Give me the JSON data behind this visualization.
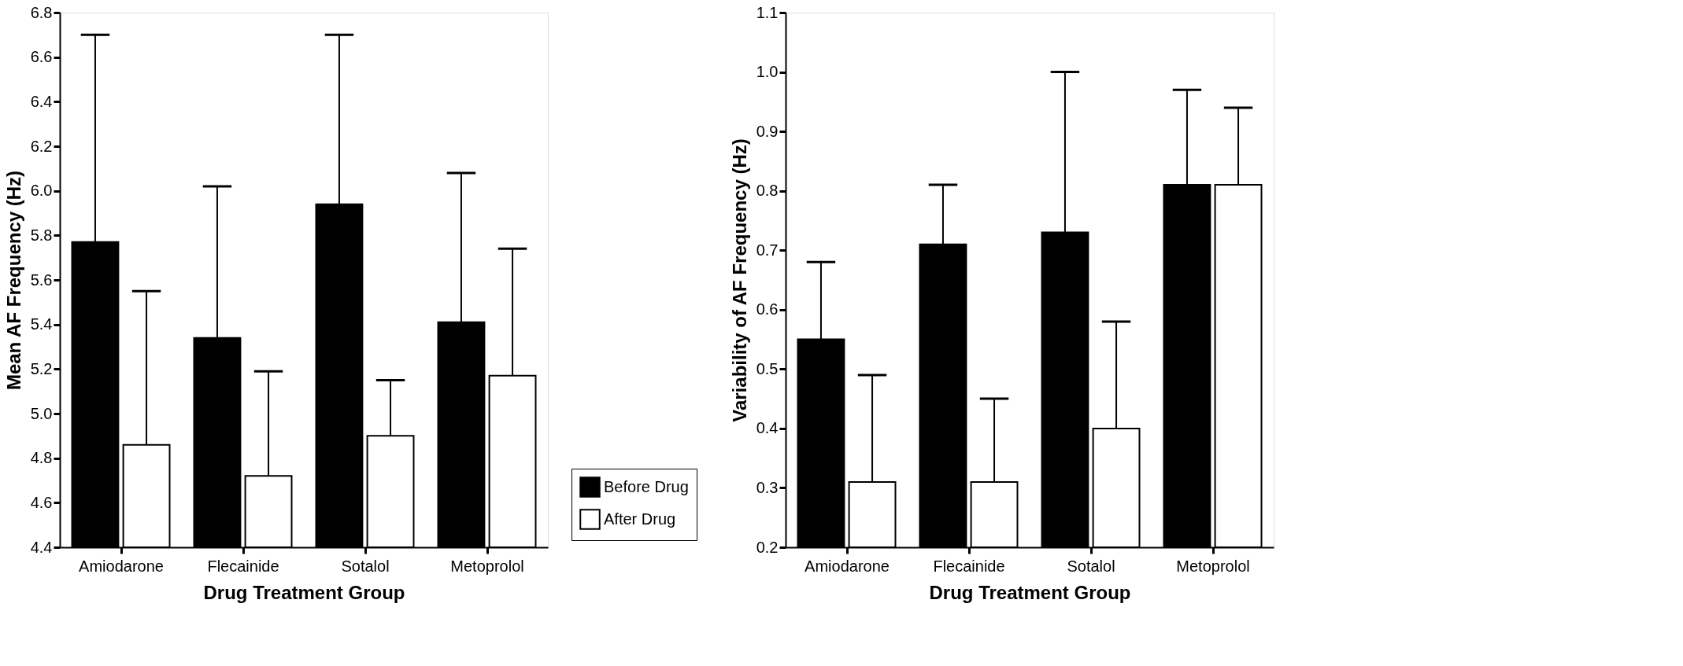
{
  "chart_data": [
    {
      "type": "bar",
      "xlabel": "Drug Treatment Group",
      "ylabel": "Mean AF Frequency (Hz)",
      "categories": [
        "Amiodarone",
        "Flecainide",
        "Sotalol",
        "Metoprolol"
      ],
      "series": [
        {
          "name": "Before Drug",
          "color": "#000000",
          "values": [
            5.77,
            5.34,
            5.94,
            5.41
          ],
          "errors": [
            [
              5.77,
              6.7
            ],
            [
              5.34,
              6.02
            ],
            [
              5.94,
              6.7
            ],
            [
              5.41,
              6.08
            ]
          ]
        },
        {
          "name": "After Drug",
          "color": "#ffffff",
          "values": [
            4.86,
            4.72,
            4.9,
            5.17
          ],
          "errors": [
            [
              4.86,
              5.55
            ],
            [
              4.72,
              5.19
            ],
            [
              4.9,
              5.15
            ],
            [
              5.17,
              5.74
            ]
          ]
        }
      ],
      "ylim": [
        4.4,
        6.8
      ],
      "yticks": [
        {
          "value": 4.4,
          "label": "4.4"
        },
        {
          "value": 4.6,
          "label": "4.6"
        },
        {
          "value": 4.8,
          "label": "4.8"
        },
        {
          "value": 5.0,
          "label": "5.0"
        },
        {
          "value": 5.2,
          "label": "5.2"
        },
        {
          "value": 5.4,
          "label": "5.4"
        },
        {
          "value": 5.6,
          "label": "5.6"
        },
        {
          "value": 5.8,
          "label": "5.8"
        },
        {
          "value": 6.0,
          "label": "6.0"
        },
        {
          "value": 6.2,
          "label": "6.2"
        },
        {
          "value": 6.4,
          "label": "6.4"
        },
        {
          "value": 6.6,
          "label": "6.6"
        },
        {
          "value": 6.8,
          "label": "6.8"
        }
      ],
      "legend": "bottom right",
      "grid": false
    },
    {
      "type": "bar",
      "xlabel": "Drug Treatment Group",
      "ylabel": "Variability of AF Frequency (Hz)",
      "categories": [
        "Amiodarone",
        "Flecainide",
        "Sotalol",
        "Metoprolol"
      ],
      "series": [
        {
          "name": "Before Drug",
          "color": "#000000",
          "values": [
            0.55,
            0.71,
            0.73,
            0.81
          ],
          "errors": [
            [
              0.55,
              0.68
            ],
            [
              0.71,
              0.81
            ],
            [
              0.73,
              1.0
            ],
            [
              0.81,
              0.97
            ]
          ]
        },
        {
          "name": "After Drug",
          "color": "#ffffff",
          "values": [
            0.31,
            0.31,
            0.4,
            0.81
          ],
          "errors": [
            [
              0.31,
              0.49
            ],
            [
              0.31,
              0.45
            ],
            [
              0.4,
              0.58
            ],
            [
              0.81,
              0.94
            ]
          ]
        }
      ],
      "ylim": [
        0.2,
        1.1
      ],
      "yticks": [
        {
          "value": 0.2,
          "label": "0.2"
        },
        {
          "value": 0.3,
          "label": "0.3"
        },
        {
          "value": 0.4,
          "label": "0.4"
        },
        {
          "value": 0.5,
          "label": "0.5"
        },
        {
          "value": 0.6,
          "label": "0.6"
        },
        {
          "value": 0.7,
          "label": "0.7"
        },
        {
          "value": 0.8,
          "label": "0.8"
        },
        {
          "value": 0.9,
          "label": "0.9"
        },
        {
          "value": 1.0,
          "label": "1.0"
        },
        {
          "value": 1.1,
          "label": "1.1"
        }
      ],
      "legend": "bottom right",
      "grid": false
    }
  ]
}
